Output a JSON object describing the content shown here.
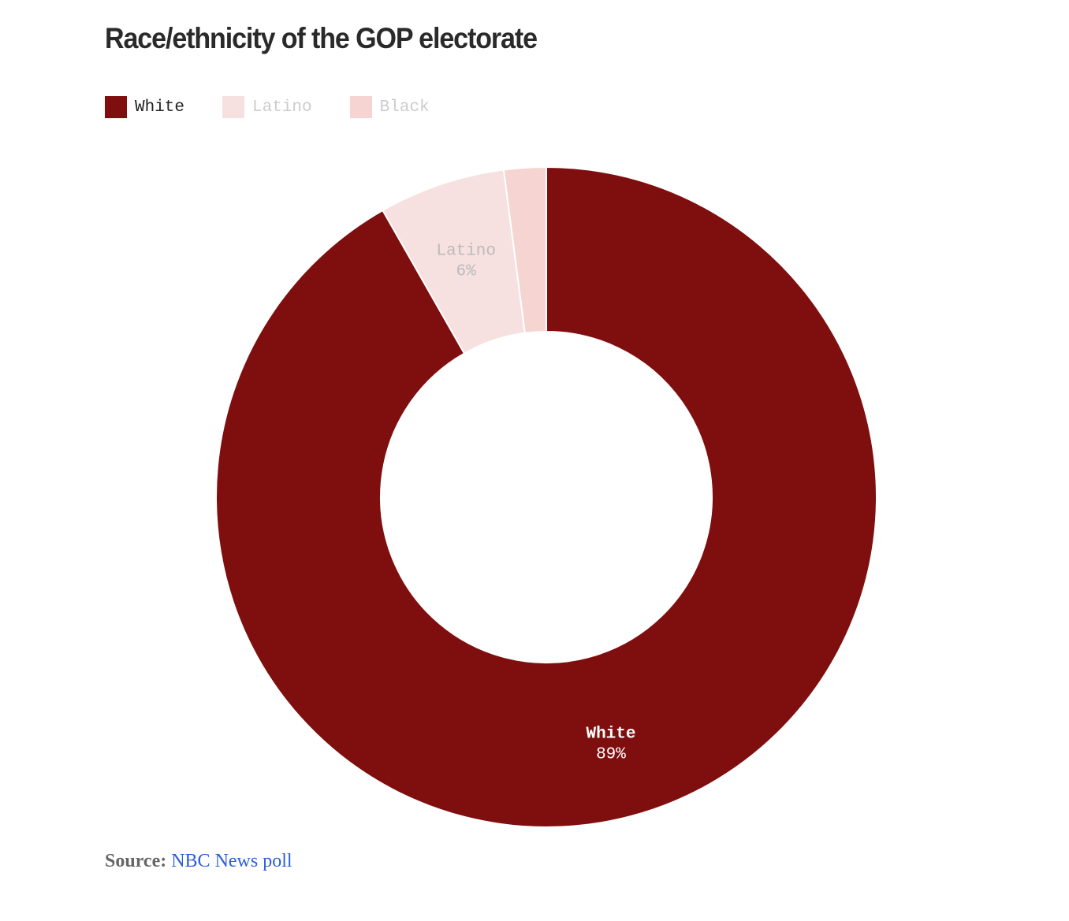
{
  "title": "Race/ethnicity of the GOP electorate",
  "colors": {
    "white": "#7f0f0f",
    "latino": "#f7e0e0",
    "black": "#f5d4d1",
    "title": "#2a2a2a",
    "source_link": "#2b5fd9"
  },
  "legend": [
    {
      "label": "White",
      "color": "#7f0f0f",
      "text_color": "#222222"
    },
    {
      "label": "Latino",
      "color": "#f7e0e0",
      "text_color": "#cccccc"
    },
    {
      "label": "Black",
      "color": "#f5d4d1",
      "text_color": "#cccccc"
    }
  ],
  "chart_data": {
    "type": "pie",
    "donut": true,
    "title": "Race/ethnicity of the GOP electorate",
    "legend_position": "top-left",
    "slices": [
      {
        "label": "White",
        "value": 89,
        "display": "89%",
        "color": "#7f0f0f",
        "label_color": "#ffffff",
        "show_label": true
      },
      {
        "label": "Latino",
        "value": 6,
        "display": "6%",
        "color": "#f7e0e0",
        "label_color": "#bbbbbb",
        "show_label": true
      },
      {
        "label": "Black",
        "value": 2,
        "display": "",
        "color": "#f5d4d1",
        "label_color": "#bbbbbb",
        "show_label": false
      }
    ]
  },
  "source": {
    "prefix": "Source:",
    "link_text": "NBC News poll"
  }
}
